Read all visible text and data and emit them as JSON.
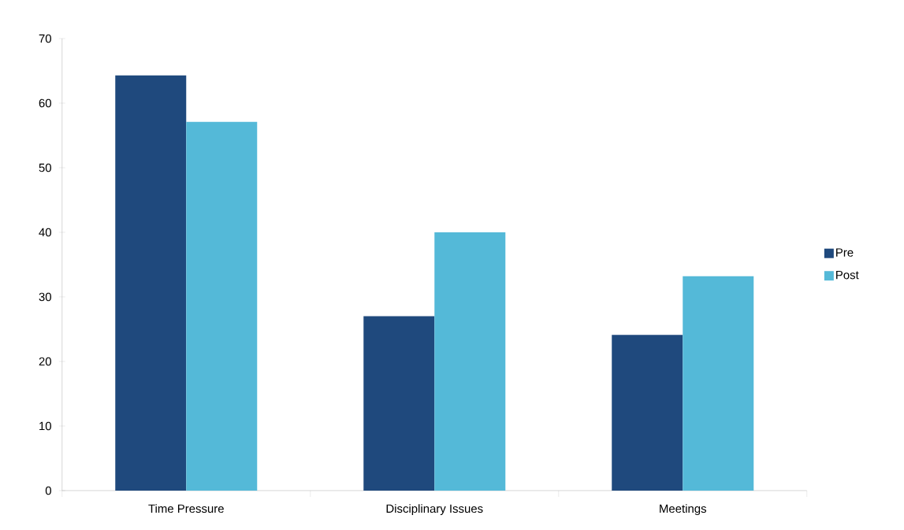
{
  "chart_data": {
    "type": "bar",
    "categories": [
      "Time Pressure",
      "Disciplinary Issues",
      "Meetings"
    ],
    "series": [
      {
        "name": "Pre",
        "color": "#1f497d",
        "values": [
          64.3,
          27.0,
          24.1
        ]
      },
      {
        "name": "Post",
        "color": "#54b9d8",
        "values": [
          57.1,
          40.0,
          33.2
        ]
      }
    ],
    "ylim": [
      0,
      70
    ],
    "yticks": [
      0,
      10,
      20,
      30,
      40,
      50,
      60,
      70
    ],
    "grid": false,
    "legend": "right"
  }
}
